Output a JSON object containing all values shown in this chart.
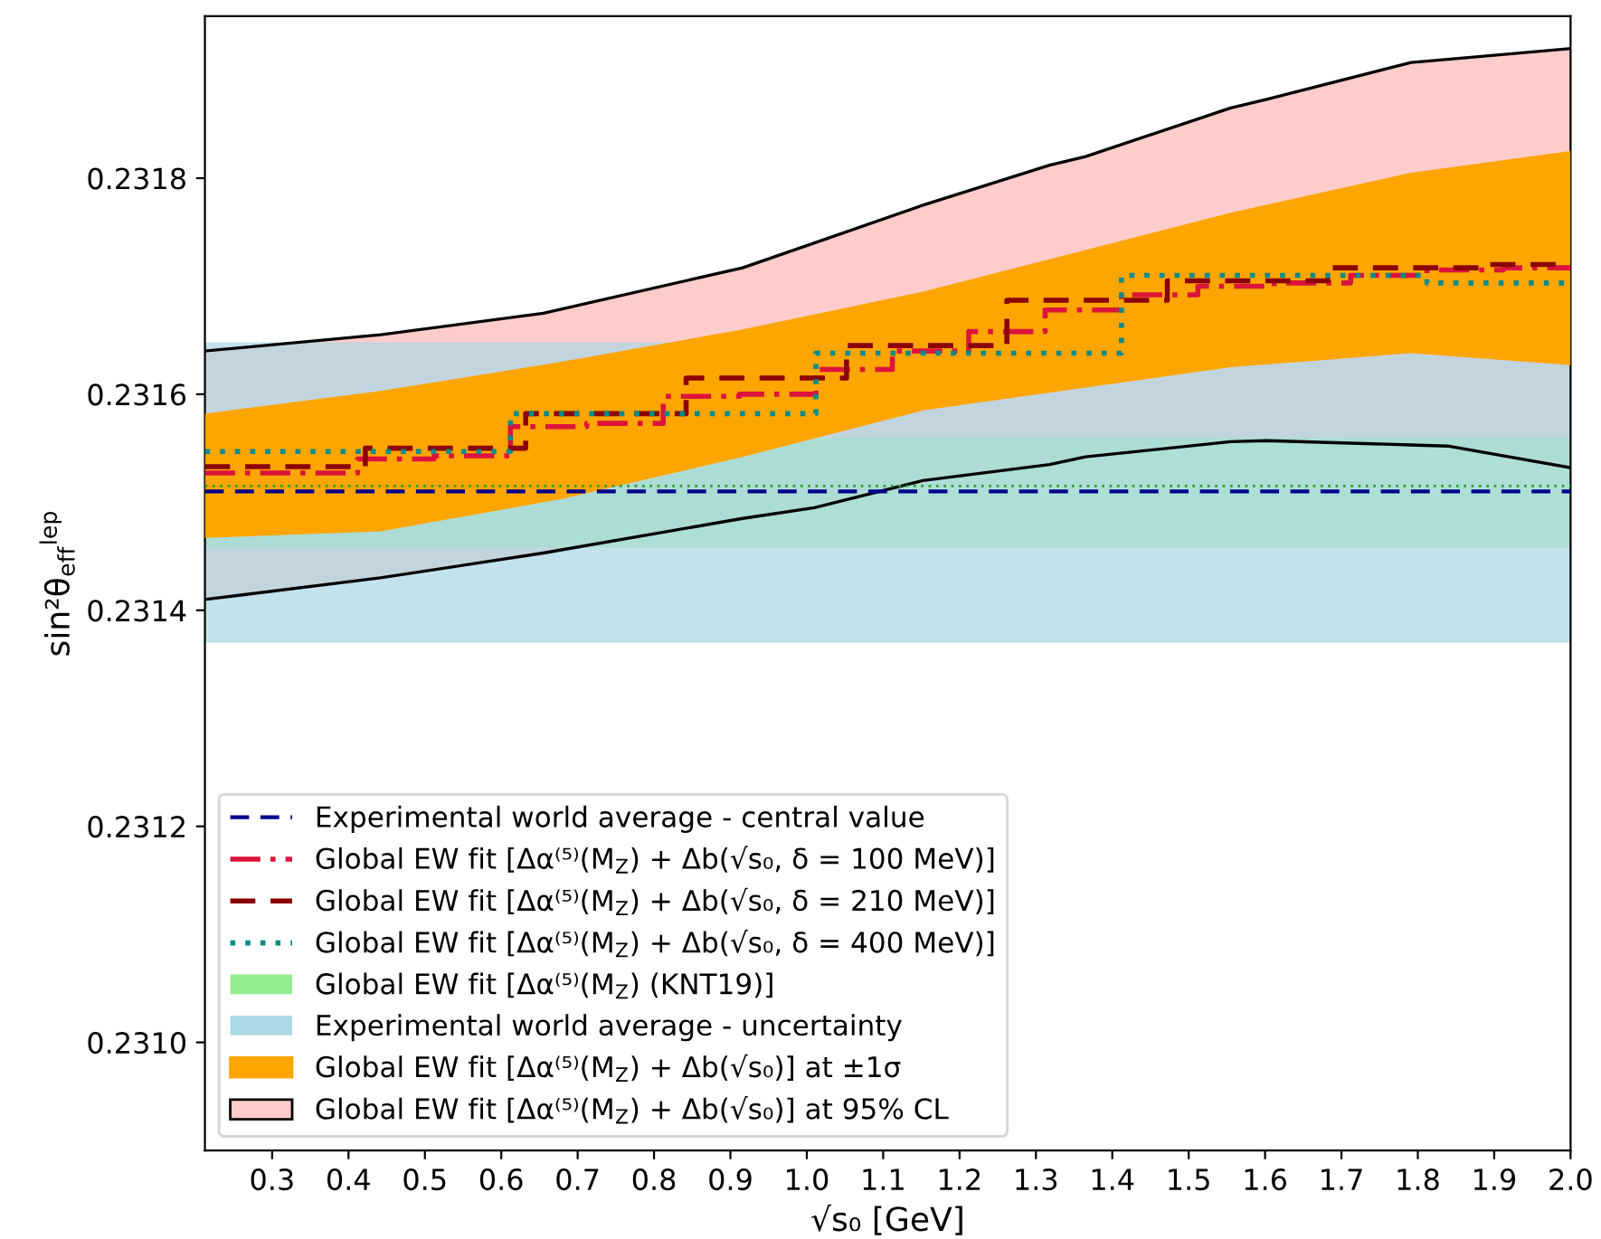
{
  "chart_data": {
    "type": "step",
    "xlabel": "√s₀ [GeV]",
    "ylabel": "sin²θ$_{eff}$$^{lep}$",
    "xlim": [
      0.212,
      2.0
    ],
    "ylim": [
      0.2309,
      0.23195
    ],
    "xticks": [
      0.3,
      0.4,
      0.5,
      0.6,
      0.7,
      0.8,
      0.9,
      {
        "value": 1.0,
        "label": "1.0"
      },
      1.1,
      1.2,
      1.3,
      1.4,
      1.5,
      1.6,
      1.7,
      1.8,
      1.9,
      {
        "value": 2.0,
        "label": "2.0"
      }
    ],
    "yticks": [
      {
        "value": 0.231,
        "label": "0.2310"
      },
      {
        "value": 0.2312,
        "label": "0.2312"
      },
      {
        "value": 0.2314,
        "label": "0.2314"
      },
      {
        "value": 0.2316,
        "label": "0.2316"
      },
      {
        "value": 0.2318,
        "label": "0.2318"
      }
    ],
    "grid": false,
    "legend": "bottom left",
    "ref_lines": [
      {
        "axis": "y",
        "value": 0.23151,
        "label": "Experimental world average - central value",
        "color": "#00008b",
        "line_style": "dashed"
      },
      {
        "axis": "y",
        "value": 0.231515,
        "color": "#2ca02c",
        "line_style": "dotted"
      }
    ],
    "bands": [
      {
        "axis": "y",
        "from": 0.231458,
        "to": 0.23156,
        "label": "Global EW fit [Δα⁽⁵⁾(M$_{Z}$) (KNT19)]",
        "color": "#90ee90"
      },
      {
        "axis": "y",
        "from": 0.23137,
        "to": 0.231648,
        "label": "Experimental world average - uncertainty",
        "color": "#add8e6"
      }
    ],
    "series": [
      {
        "name": "Global EW fit [Δα⁽⁵⁾(M$_{Z}$) + Δb(√s₀, δ = 100 MeV)]",
        "color": "#dc143c",
        "line_style": "dashdot",
        "x": [
          0.212,
          0.312,
          0.412,
          0.512,
          0.612,
          0.712,
          0.812,
          0.912,
          1.012,
          1.112,
          1.212,
          1.312,
          1.412,
          1.512,
          1.612,
          1.712,
          1.812,
          1.912,
          2.0
        ],
        "values": [
          0.231527,
          0.231527,
          0.23154,
          0.231543,
          0.23157,
          0.231573,
          0.231598,
          0.2316,
          0.231623,
          0.23164,
          0.231658,
          0.231678,
          0.231692,
          0.2317,
          0.231703,
          0.23171,
          0.231715,
          0.231717,
          0.231717
        ]
      },
      {
        "name": "Global EW fit [Δα⁽⁵⁾(M$_{Z}$) + Δb(√s₀, δ = 210 MeV)]",
        "color": "#8b0000",
        "line_style": "dashed",
        "x": [
          0.212,
          0.422,
          0.632,
          0.842,
          1.052,
          1.262,
          1.472,
          1.682,
          1.892,
          2.0
        ],
        "values": [
          0.231533,
          0.23155,
          0.231582,
          0.231615,
          0.231645,
          0.231687,
          0.231705,
          0.231717,
          0.23172,
          0.23172
        ]
      },
      {
        "name": "Global EW fit [Δα⁽⁵⁾(M$_{Z}$) + Δb(√s₀, δ = 400 MeV)]",
        "color": "#008b8b",
        "line_style": "dotted",
        "x": [
          0.212,
          0.612,
          1.012,
          1.412,
          1.812,
          2.0
        ],
        "values": [
          0.231547,
          0.231582,
          0.231638,
          0.23171,
          0.231703,
          0.231703
        ]
      },
      {
        "type": "area",
        "name": "Global EW fit [Δα⁽⁵⁾(M$_{Z}$) + Δb(√s₀)] at ±1σ",
        "color": "#ffa500",
        "x": [
          0.212,
          0.442,
          0.679,
          0.916,
          1.152,
          1.555,
          1.791,
          2.0
        ],
        "lower": [
          0.231467,
          0.231473,
          0.231503,
          0.231542,
          0.231585,
          0.231625,
          0.231638,
          0.231627
        ],
        "values": [
          null,
          null,
          null,
          null,
          null,
          null,
          null,
          null
        ],
        "upper": [
          0.231582,
          0.231603,
          0.23163,
          0.23166,
          0.231695,
          0.231768,
          0.231805,
          0.231825
        ]
      },
      {
        "type": "area",
        "name": "Global EW fit [Δα⁽⁵⁾(M$_{Z}$) + Δb(√s₀)] at 95% CL",
        "color": "#ffcccb",
        "line_style": "solid",
        "x": [
          0.212,
          0.442,
          0.655,
          0.916,
          1.01,
          1.152,
          1.318,
          1.365,
          1.555,
          1.602,
          1.791,
          1.839,
          2.0
        ],
        "lower": [
          0.23141,
          0.23143,
          0.231453,
          0.231485,
          0.231495,
          0.23152,
          0.231535,
          0.231542,
          0.231556,
          0.231557,
          0.231553,
          0.231552,
          0.231532
        ],
        "values": [
          null,
          null,
          null,
          null,
          null,
          null,
          null,
          null,
          null,
          null,
          null,
          null,
          null
        ],
        "upper": [
          0.23164,
          0.231655,
          0.231675,
          0.231717,
          0.23174,
          0.231775,
          0.231812,
          0.23182,
          0.231865,
          0.231873,
          0.231907,
          0.23191,
          0.23192
        ]
      },
      {
        "type": "line",
        "color": "#000000",
        "line_style": "solid",
        "x": [
          0.212,
          0.442,
          0.655,
          0.916,
          1.01,
          1.152,
          1.318,
          1.365,
          1.555,
          1.602,
          1.791,
          1.839,
          2.0
        ],
        "values": [
          0.23141,
          0.23143,
          0.231453,
          0.231485,
          0.231495,
          0.23152,
          0.231535,
          0.231542,
          0.231556,
          0.231557,
          0.231553,
          0.231552,
          0.231532
        ]
      },
      {
        "type": "line",
        "color": "#000000",
        "line_style": "solid",
        "x": [
          0.212,
          0.442,
          0.655,
          0.916,
          1.01,
          1.152,
          1.318,
          1.365,
          1.555,
          1.602,
          1.791,
          1.839,
          2.0
        ],
        "values": [
          0.23164,
          0.231655,
          0.231675,
          0.231717,
          0.23174,
          0.231775,
          0.231812,
          0.23182,
          0.231865,
          0.231873,
          0.231907,
          0.23191,
          0.23192
        ]
      }
    ]
  }
}
